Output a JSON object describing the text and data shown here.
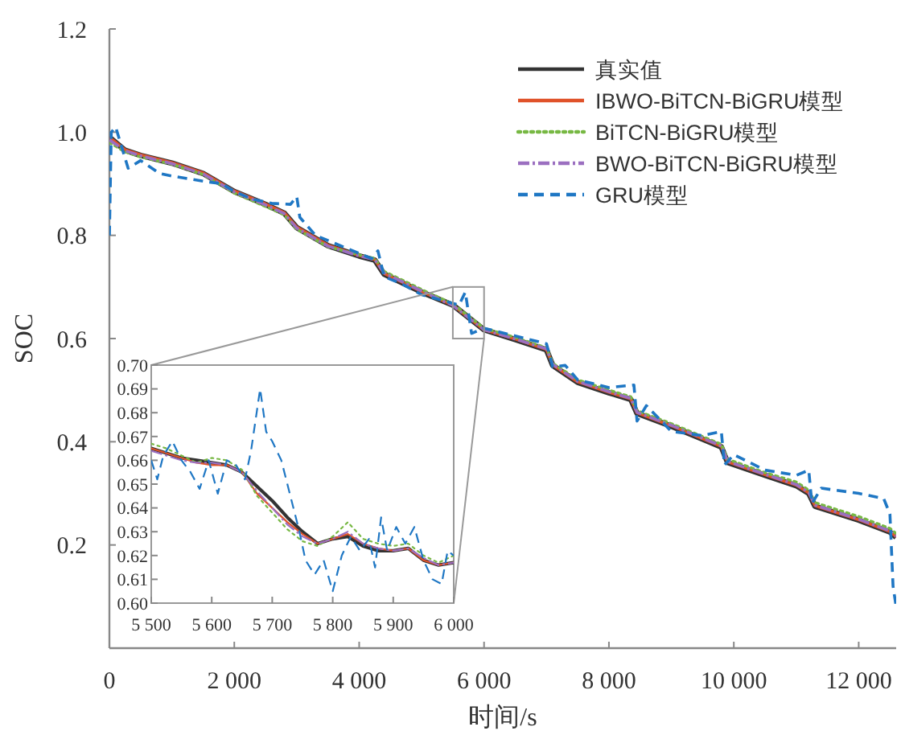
{
  "chart_data": [
    {
      "type": "line",
      "xlabel": "时间/s",
      "ylabel": "SOC",
      "xlim": [
        0,
        12600
      ],
      "ylim": [
        0,
        1.2
      ],
      "xticks": [
        0,
        {
          "value": 2000,
          "label": "2 000"
        },
        {
          "value": 4000,
          "label": "4 000"
        },
        {
          "value": 6000,
          "label": "6 000"
        },
        {
          "value": 8000,
          "label": "8 000"
        },
        {
          "value": 10000,
          "label": "10 000"
        },
        {
          "value": 12000,
          "label": "12 000"
        }
      ],
      "yticks": [
        0.2,
        0.4,
        0.6,
        0.8,
        {
          "value": 1,
          "label": "1.0"
        },
        1.2
      ],
      "legend": "top right",
      "x": [
        0,
        250,
        500,
        1000,
        1500,
        2000,
        2500,
        2800,
        3000,
        3500,
        4000,
        4250,
        4400,
        5000,
        5500,
        6000,
        6500,
        7000,
        7100,
        7500,
        8000,
        8350,
        8450,
        9000,
        9500,
        9800,
        9900,
        10500,
        11000,
        11200,
        11300,
        12000,
        12500,
        12600
      ],
      "series": [
        {
          "name": "真实值",
          "color": "#333333",
          "line_style": "solid",
          "values": [
            0.99,
            0.965,
            0.955,
            0.94,
            0.92,
            0.885,
            0.86,
            0.843,
            0.815,
            0.78,
            0.76,
            0.752,
            0.725,
            0.69,
            0.665,
            0.617,
            0.598,
            0.578,
            0.548,
            0.515,
            0.495,
            0.482,
            0.455,
            0.43,
            0.405,
            0.39,
            0.36,
            0.335,
            0.315,
            0.3,
            0.275,
            0.248,
            0.225,
            0.215
          ]
        },
        {
          "name": "IBWO-BiTCN-BiGRU模型",
          "color": "#e0522a",
          "line_style": "solid",
          "values": [
            0.99,
            0.966,
            0.956,
            0.941,
            0.921,
            0.886,
            0.861,
            0.844,
            0.816,
            0.781,
            0.761,
            0.753,
            0.726,
            0.691,
            0.665,
            0.617,
            0.599,
            0.579,
            0.549,
            0.516,
            0.496,
            0.483,
            0.456,
            0.431,
            0.406,
            0.391,
            0.361,
            0.336,
            0.316,
            0.301,
            0.276,
            0.249,
            0.226,
            0.216
          ]
        },
        {
          "name": "BiTCN-BiGRU模型",
          "color": "#77b843",
          "line_style": "dotted",
          "values": [
            0.98,
            0.962,
            0.952,
            0.938,
            0.918,
            0.882,
            0.856,
            0.84,
            0.812,
            0.778,
            0.762,
            0.755,
            0.73,
            0.695,
            0.667,
            0.62,
            0.602,
            0.582,
            0.552,
            0.52,
            0.5,
            0.487,
            0.46,
            0.435,
            0.41,
            0.395,
            0.366,
            0.34,
            0.322,
            0.306,
            0.282,
            0.255,
            0.232,
            0.222
          ]
        },
        {
          "name": "BWO-BiTCN-BiGRU模型",
          "color": "#9b6fc0",
          "line_style": "dashdot",
          "values": [
            0.985,
            0.964,
            0.954,
            0.939,
            0.919,
            0.884,
            0.859,
            0.842,
            0.814,
            0.779,
            0.76,
            0.753,
            0.727,
            0.692,
            0.664,
            0.617,
            0.599,
            0.58,
            0.55,
            0.517,
            0.497,
            0.484,
            0.457,
            0.432,
            0.407,
            0.392,
            0.362,
            0.337,
            0.317,
            0.302,
            0.277,
            0.25,
            0.227,
            0.217
          ]
        },
        {
          "name": "GRU模型",
          "color": "#1f77c4",
          "line_style": "dashed",
          "x": [
            0,
            30,
            100,
            200,
            300,
            500,
            800,
            1000,
            1500,
            1800,
            2000,
            2300,
            2600,
            2900,
            3000,
            3050,
            3300,
            3600,
            4000,
            4200,
            4300,
            4400,
            4700,
            5000,
            5300,
            5600,
            5700,
            5800,
            6000,
            6500,
            7000,
            7100,
            7300,
            7500,
            8000,
            8400,
            8450,
            8600,
            9000,
            9500,
            9800,
            9850,
            10000,
            10500,
            11000,
            11200,
            11250,
            11400,
            12000,
            12400,
            12500,
            12550,
            12600
          ],
          "values": [
            0.8,
            1.0,
            1.01,
            0.97,
            0.93,
            0.945,
            0.92,
            0.915,
            0.905,
            0.9,
            0.885,
            0.87,
            0.862,
            0.86,
            0.875,
            0.835,
            0.8,
            0.785,
            0.765,
            0.755,
            0.77,
            0.72,
            0.705,
            0.685,
            0.675,
            0.665,
            0.69,
            0.61,
            0.62,
            0.605,
            0.59,
            0.545,
            0.548,
            0.52,
            0.505,
            0.51,
            0.44,
            0.47,
            0.42,
            0.412,
            0.42,
            0.355,
            0.375,
            0.345,
            0.335,
            0.345,
            0.28,
            0.31,
            0.3,
            0.29,
            0.26,
            0.12,
            0.08
          ]
        }
      ]
    },
    {
      "type": "line",
      "xlim": [
        5500,
        6000
      ],
      "ylim": [
        0.6,
        0.7
      ],
      "xticks": [
        {
          "value": 5500,
          "label": "5 500"
        },
        {
          "value": 5600,
          "label": "5 600"
        },
        {
          "value": 5700,
          "label": "5 700"
        },
        {
          "value": 5800,
          "label": "5 800"
        },
        {
          "value": 5900,
          "label": "5 900"
        },
        {
          "value": 6000,
          "label": "6 000"
        }
      ],
      "yticks": [
        {
          "value": 0.6,
          "label": "0.60"
        },
        {
          "value": 0.61,
          "label": "0.61"
        },
        {
          "value": 0.62,
          "label": "0.62"
        },
        {
          "value": 0.63,
          "label": "0.63"
        },
        {
          "value": 0.64,
          "label": "0.64"
        },
        {
          "value": 0.65,
          "label": "0.65"
        },
        {
          "value": 0.66,
          "label": "0.66"
        },
        {
          "value": 0.67,
          "label": "0.67"
        },
        {
          "value": 0.68,
          "label": "0.68"
        },
        {
          "value": 0.69,
          "label": "0.69"
        },
        {
          "value": 0.7,
          "label": "0.70"
        }
      ],
      "x": [
        5500,
        5525,
        5550,
        5575,
        5600,
        5625,
        5650,
        5675,
        5700,
        5725,
        5750,
        5775,
        5800,
        5825,
        5850,
        5875,
        5900,
        5925,
        5950,
        5975,
        6000
      ],
      "series": [
        {
          "color": "#333333",
          "line_style": "solid",
          "values": [
            0.665,
            0.663,
            0.661,
            0.66,
            0.659,
            0.658,
            0.655,
            0.649,
            0.643,
            0.636,
            0.63,
            0.625,
            0.627,
            0.628,
            0.624,
            0.622,
            0.622,
            0.623,
            0.618,
            0.616,
            0.617
          ]
        },
        {
          "color": "#e0522a",
          "line_style": "solid",
          "values": [
            0.665,
            0.663,
            0.661,
            0.659,
            0.658,
            0.658,
            0.655,
            0.646,
            0.64,
            0.634,
            0.629,
            0.625,
            0.627,
            0.629,
            0.625,
            0.623,
            0.622,
            0.623,
            0.618,
            0.616,
            0.617
          ]
        },
        {
          "color": "#77b843",
          "line_style": "dotted",
          "values": [
            0.667,
            0.665,
            0.662,
            0.659,
            0.661,
            0.66,
            0.656,
            0.645,
            0.638,
            0.631,
            0.626,
            0.624,
            0.628,
            0.634,
            0.627,
            0.625,
            0.624,
            0.625,
            0.62,
            0.617,
            0.62
          ]
        },
        {
          "color": "#9b6fc0",
          "line_style": "dashdot",
          "values": [
            0.664,
            0.662,
            0.66,
            0.659,
            0.659,
            0.658,
            0.655,
            0.647,
            0.64,
            0.633,
            0.628,
            0.625,
            0.627,
            0.63,
            0.625,
            0.623,
            0.622,
            0.623,
            0.619,
            0.616,
            0.617
          ]
        },
        {
          "color": "#1f77c4",
          "line_style": "dashed",
          "x": [
            5500,
            5510,
            5520,
            5535,
            5550,
            5565,
            5580,
            5595,
            5610,
            5625,
            5640,
            5655,
            5665,
            5680,
            5690,
            5700,
            5715,
            5730,
            5745,
            5755,
            5770,
            5785,
            5800,
            5815,
            5830,
            5845,
            5860,
            5870,
            5880,
            5890,
            5905,
            5920,
            5935,
            5950,
            5965,
            5980,
            5990,
            6000
          ],
          "values": [
            0.66,
            0.652,
            0.662,
            0.668,
            0.66,
            0.655,
            0.648,
            0.66,
            0.646,
            0.66,
            0.658,
            0.652,
            0.664,
            0.69,
            0.672,
            0.668,
            0.66,
            0.645,
            0.63,
            0.618,
            0.612,
            0.618,
            0.605,
            0.62,
            0.628,
            0.622,
            0.627,
            0.615,
            0.636,
            0.622,
            0.632,
            0.625,
            0.632,
            0.618,
            0.61,
            0.608,
            0.622,
            0.62
          ]
        }
      ]
    }
  ]
}
